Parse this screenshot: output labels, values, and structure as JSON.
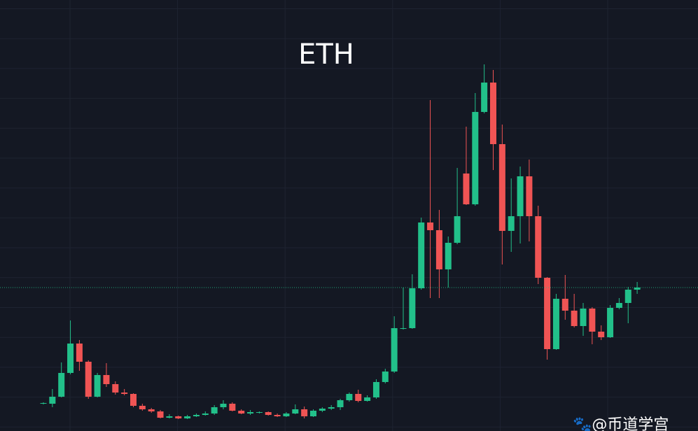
{
  "chart_data": {
    "type": "candlestick",
    "title": "ETH",
    "watermark": "🐾@币道学宫",
    "up_color": "#22c08a",
    "down_color": "#f05454",
    "ylim": [
      0,
      616
    ],
    "open": [
      39,
      39,
      49,
      83,
      125,
      99,
      49,
      80,
      67,
      55,
      53,
      36,
      31,
      28,
      19,
      21,
      18,
      21,
      23,
      25,
      34,
      39,
      29,
      25,
      27,
      27,
      23,
      21,
      25,
      31,
      21,
      29,
      32,
      34,
      44,
      53,
      43,
      48,
      70,
      85,
      147,
      147,
      204,
      298,
      287,
      231,
      269,
      368,
      324,
      456,
      498,
      410,
      286,
      307,
      364,
      307,
      219,
      117,
      189,
      172,
      150,
      175,
      142,
      134,
      176,
      183,
      202
    ],
    "high": [
      41,
      60,
      98,
      158,
      130,
      101,
      83,
      97,
      71,
      60,
      54,
      39,
      33,
      30,
      24,
      22,
      23,
      25,
      28,
      37,
      44,
      41,
      31,
      30,
      28,
      28,
      25,
      27,
      38,
      35,
      31,
      34,
      37,
      46,
      55,
      59,
      51,
      74,
      89,
      164,
      205,
      224,
      305,
      473,
      316,
      278,
      376,
      435,
      483,
      524,
      516,
      438,
      361,
      378,
      388,
      322,
      220,
      196,
      223,
      196,
      183,
      177,
      151,
      180,
      190,
      206,
      213
    ],
    "low": [
      38,
      34,
      48,
      81,
      86,
      46,
      48,
      63,
      52,
      51,
      34,
      29,
      26,
      18,
      18,
      17,
      17,
      20,
      22,
      23,
      31,
      28,
      24,
      23,
      25,
      22,
      20,
      20,
      24,
      18,
      20,
      27,
      30,
      30,
      42,
      41,
      42,
      46,
      68,
      83,
      145,
      146,
      202,
      190,
      190,
      205,
      267,
      323,
      322,
      454,
      373,
      238,
      256,
      268,
      271,
      210,
      102,
      116,
      159,
      148,
      136,
      124,
      130,
      133,
      174,
      154,
      196
    ],
    "close": [
      40,
      49,
      83,
      125,
      99,
      49,
      80,
      67,
      55,
      53,
      36,
      31,
      28,
      19,
      21,
      18,
      21,
      23,
      25,
      34,
      39,
      29,
      25,
      27,
      27,
      23,
      21,
      25,
      31,
      21,
      29,
      32,
      34,
      44,
      53,
      43,
      48,
      70,
      85,
      147,
      147,
      204,
      298,
      287,
      231,
      269,
      307,
      324,
      456,
      498,
      410,
      286,
      307,
      364,
      307,
      219,
      117,
      189,
      172,
      150,
      175,
      142,
      134,
      176,
      183,
      202,
      205
    ]
  }
}
